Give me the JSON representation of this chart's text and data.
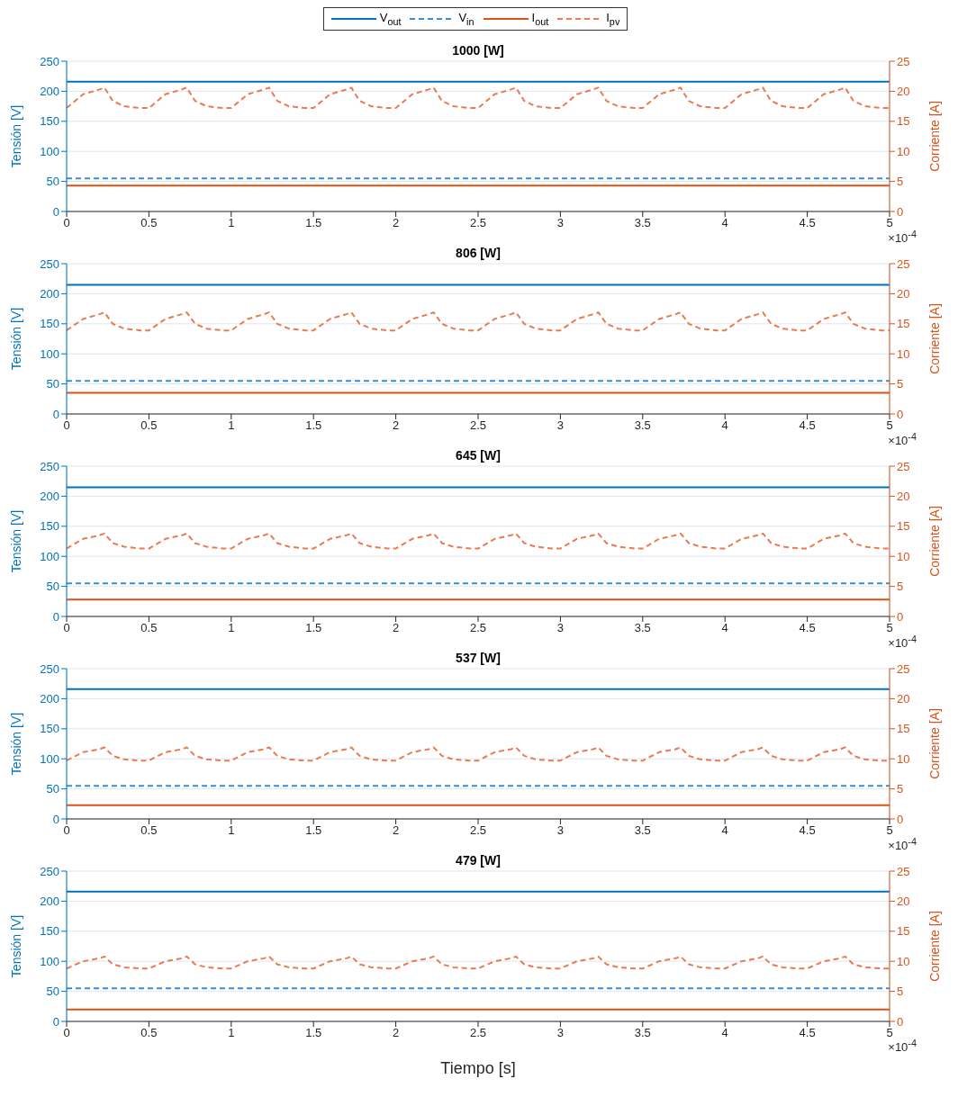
{
  "chart_data": [
    {
      "type": "line",
      "title": "1000 [W]",
      "ylabel": "Tensión [V]",
      "y2label": "Corriente [A]",
      "legend": "top",
      "grid": true,
      "marker": "none",
      "annotations": [
        "×10$^{-4}$"
      ],
      "xlim": [
        0,
        5
      ],
      "xticks": [
        0,
        0.5,
        1,
        1.5,
        2,
        2.5,
        3,
        3.5,
        4,
        4.5,
        5
      ],
      "ylim": [
        0,
        250
      ],
      "yticks": [
        0,
        50,
        100,
        150,
        200,
        250
      ],
      "y2lim": [
        0,
        25
      ],
      "y2ticks": [
        0,
        5,
        10,
        15,
        20,
        25
      ],
      "x": [
        0,
        0.1,
        0.2,
        0.23,
        0.28,
        0.35,
        0.45,
        0.5,
        0.6,
        0.7,
        0.73,
        0.78,
        0.85,
        0.95,
        1,
        1.1,
        1.2,
        1.23,
        1.28,
        1.35,
        1.45,
        1.5,
        1.6,
        1.7,
        1.73,
        1.78,
        1.85,
        1.95,
        2,
        2.1,
        2.2,
        2.23,
        2.28,
        2.35,
        2.45,
        2.5,
        2.6,
        2.7,
        2.73,
        2.78,
        2.85,
        2.95,
        3,
        3.1,
        3.2,
        3.23,
        3.28,
        3.35,
        3.45,
        3.5,
        3.6,
        3.7,
        3.73,
        3.78,
        3.85,
        3.95,
        4,
        4.1,
        4.2,
        4.23,
        4.28,
        4.35,
        4.45,
        4.5,
        4.6,
        4.7,
        4.73,
        4.78,
        4.85,
        4.95,
        5
      ],
      "series": [
        {
          "name": "V$_{out}$",
          "color": "#0072bd",
          "line_style": "solid",
          "values": [
            216,
            216,
            216,
            216,
            216,
            216,
            216,
            216,
            216,
            216,
            216,
            216,
            216,
            216,
            216,
            216,
            216,
            216,
            216,
            216,
            216,
            216,
            216,
            216,
            216,
            216,
            216,
            216,
            216,
            216,
            216,
            216,
            216,
            216,
            216,
            216,
            216,
            216,
            216,
            216,
            216,
            216,
            216,
            216,
            216,
            216,
            216,
            216,
            216,
            216,
            216,
            216,
            216,
            216,
            216,
            216,
            216,
            216,
            216,
            216,
            216,
            216,
            216,
            216,
            216,
            216,
            216,
            216,
            216,
            216,
            216
          ]
        },
        {
          "name": "V$_{in}$",
          "color": "#3a8fd0",
          "line_style": "dashed",
          "values": [
            55,
            55,
            55,
            55,
            55,
            55,
            55,
            55,
            55,
            55,
            55,
            55,
            55,
            55,
            55,
            55,
            55,
            55,
            55,
            55,
            55,
            55,
            55,
            55,
            55,
            55,
            55,
            55,
            55,
            55,
            55,
            55,
            55,
            55,
            55,
            55,
            55,
            55,
            55,
            55,
            55,
            55,
            55,
            55,
            55,
            55,
            55,
            55,
            55,
            55,
            55,
            55,
            55,
            55,
            55,
            55,
            55,
            55,
            55,
            55,
            55,
            55,
            55,
            55,
            55,
            55,
            55,
            55,
            55,
            55,
            55
          ]
        },
        {
          "name": "I$_{out}$",
          "color": "#d95319",
          "line_style": "solid",
          "axis": "y2",
          "values": [
            4.3,
            4.3,
            4.3,
            4.3,
            4.3,
            4.3,
            4.3,
            4.3,
            4.3,
            4.3,
            4.3,
            4.3,
            4.3,
            4.3,
            4.3,
            4.3,
            4.3,
            4.3,
            4.3,
            4.3,
            4.3,
            4.3,
            4.3,
            4.3,
            4.3,
            4.3,
            4.3,
            4.3,
            4.3,
            4.3,
            4.3,
            4.3,
            4.3,
            4.3,
            4.3,
            4.3,
            4.3,
            4.3,
            4.3,
            4.3,
            4.3,
            4.3,
            4.3,
            4.3,
            4.3,
            4.3,
            4.3,
            4.3,
            4.3,
            4.3,
            4.3,
            4.3,
            4.3,
            4.3,
            4.3,
            4.3,
            4.3,
            4.3,
            4.3,
            4.3,
            4.3,
            4.3,
            4.3,
            4.3,
            4.3,
            4.3,
            4.3,
            4.3,
            4.3,
            4.3,
            4.3
          ]
        },
        {
          "name": "I$_{pv}$",
          "color": "#e87b52",
          "line_style": "dashed",
          "axis": "y2",
          "values": [
            17.2,
            19.5,
            20.3,
            20.6,
            18.4,
            17.5,
            17.2,
            17.2,
            19.5,
            20.3,
            20.6,
            18.4,
            17.5,
            17.2,
            17.2,
            19.5,
            20.3,
            20.6,
            18.4,
            17.5,
            17.2,
            17.2,
            19.5,
            20.3,
            20.6,
            18.4,
            17.5,
            17.2,
            17.2,
            19.5,
            20.3,
            20.6,
            18.4,
            17.5,
            17.2,
            17.2,
            19.5,
            20.3,
            20.6,
            18.4,
            17.5,
            17.2,
            17.2,
            19.5,
            20.3,
            20.6,
            18.4,
            17.5,
            17.2,
            17.2,
            19.5,
            20.3,
            20.6,
            18.4,
            17.5,
            17.2,
            17.2,
            19.5,
            20.3,
            20.6,
            18.4,
            17.5,
            17.2,
            17.2,
            19.5,
            20.3,
            20.6,
            18.4,
            17.5,
            17.2,
            17.2
          ]
        }
      ]
    },
    {
      "type": "line",
      "title": "806 [W]",
      "ylabel": "Tensión [V]",
      "y2label": "Corriente [A]",
      "grid": true,
      "marker": "none",
      "annotations": [
        "×10$^{-4}$"
      ],
      "xlim": [
        0,
        5
      ],
      "xticks": [
        0,
        0.5,
        1,
        1.5,
        2,
        2.5,
        3,
        3.5,
        4,
        4.5,
        5
      ],
      "ylim": [
        0,
        250
      ],
      "yticks": [
        0,
        50,
        100,
        150,
        200,
        250
      ],
      "y2lim": [
        0,
        25
      ],
      "y2ticks": [
        0,
        5,
        10,
        15,
        20,
        25
      ],
      "x": [
        0,
        0.1,
        0.2,
        0.23,
        0.28,
        0.35,
        0.45,
        0.5,
        0.6,
        0.7,
        0.73,
        0.78,
        0.85,
        0.95,
        1,
        1.1,
        1.2,
        1.23,
        1.28,
        1.35,
        1.45,
        1.5,
        1.6,
        1.7,
        1.73,
        1.78,
        1.85,
        1.95,
        2,
        2.1,
        2.2,
        2.23,
        2.28,
        2.35,
        2.45,
        2.5,
        2.6,
        2.7,
        2.73,
        2.78,
        2.85,
        2.95,
        3,
        3.1,
        3.2,
        3.23,
        3.28,
        3.35,
        3.45,
        3.5,
        3.6,
        3.7,
        3.73,
        3.78,
        3.85,
        3.95,
        4,
        4.1,
        4.2,
        4.23,
        4.28,
        4.35,
        4.45,
        4.5,
        4.6,
        4.7,
        4.73,
        4.78,
        4.85,
        4.95,
        5
      ],
      "series": [
        {
          "color": "#0072bd",
          "line_style": "solid",
          "values": [
            215,
            215,
            215,
            215,
            215,
            215,
            215,
            215,
            215,
            215,
            215,
            215,
            215,
            215,
            215,
            215,
            215,
            215,
            215,
            215,
            215,
            215,
            215,
            215,
            215,
            215,
            215,
            215,
            215,
            215,
            215,
            215,
            215,
            215,
            215,
            215,
            215,
            215,
            215,
            215,
            215,
            215,
            215,
            215,
            215,
            215,
            215,
            215,
            215,
            215,
            215,
            215,
            215,
            215,
            215,
            215,
            215,
            215,
            215,
            215,
            215,
            215,
            215,
            215,
            215,
            215,
            215,
            215,
            215,
            215,
            215
          ]
        },
        {
          "color": "#3a8fd0",
          "line_style": "dashed",
          "values": [
            55,
            55,
            55,
            55,
            55,
            55,
            55,
            55,
            55,
            55,
            55,
            55,
            55,
            55,
            55,
            55,
            55,
            55,
            55,
            55,
            55,
            55,
            55,
            55,
            55,
            55,
            55,
            55,
            55,
            55,
            55,
            55,
            55,
            55,
            55,
            55,
            55,
            55,
            55,
            55,
            55,
            55,
            55,
            55,
            55,
            55,
            55,
            55,
            55,
            55,
            55,
            55,
            55,
            55,
            55,
            55,
            55,
            55,
            55,
            55,
            55,
            55,
            55,
            55,
            55,
            55,
            55,
            55,
            55,
            55,
            55
          ]
        },
        {
          "color": "#d95319",
          "line_style": "solid",
          "axis": "y2",
          "values": [
            3.5,
            3.5,
            3.5,
            3.5,
            3.5,
            3.5,
            3.5,
            3.5,
            3.5,
            3.5,
            3.5,
            3.5,
            3.5,
            3.5,
            3.5,
            3.5,
            3.5,
            3.5,
            3.5,
            3.5,
            3.5,
            3.5,
            3.5,
            3.5,
            3.5,
            3.5,
            3.5,
            3.5,
            3.5,
            3.5,
            3.5,
            3.5,
            3.5,
            3.5,
            3.5,
            3.5,
            3.5,
            3.5,
            3.5,
            3.5,
            3.5,
            3.5,
            3.5,
            3.5,
            3.5,
            3.5,
            3.5,
            3.5,
            3.5,
            3.5,
            3.5,
            3.5,
            3.5,
            3.5,
            3.5,
            3.5,
            3.5,
            3.5,
            3.5,
            3.5,
            3.5,
            3.5,
            3.5,
            3.5,
            3.5,
            3.5,
            3.5,
            3.5,
            3.5,
            3.5,
            3.5
          ]
        },
        {
          "color": "#e87b52",
          "line_style": "dashed",
          "axis": "y2",
          "values": [
            13.9,
            15.8,
            16.6,
            16.9,
            15.0,
            14.2,
            13.9,
            13.9,
            15.8,
            16.6,
            16.9,
            15.0,
            14.2,
            13.9,
            13.9,
            15.8,
            16.6,
            16.9,
            15.0,
            14.2,
            13.9,
            13.9,
            15.8,
            16.6,
            16.9,
            15.0,
            14.2,
            13.9,
            13.9,
            15.8,
            16.6,
            16.9,
            15.0,
            14.2,
            13.9,
            13.9,
            15.8,
            16.6,
            16.9,
            15.0,
            14.2,
            13.9,
            13.9,
            15.8,
            16.6,
            16.9,
            15.0,
            14.2,
            13.9,
            13.9,
            15.8,
            16.6,
            16.9,
            15.0,
            14.2,
            13.9,
            13.9,
            15.8,
            16.6,
            16.9,
            15.0,
            14.2,
            13.9,
            13.9,
            15.8,
            16.6,
            16.9,
            15.0,
            14.2,
            13.9,
            13.9
          ]
        }
      ]
    },
    {
      "type": "line",
      "title": "645 [W]",
      "ylabel": "Tensión [V]",
      "y2label": "Corriente [A]",
      "grid": true,
      "marker": "none",
      "annotations": [
        "×10$^{-4}$"
      ],
      "xlim": [
        0,
        5
      ],
      "xticks": [
        0,
        0.5,
        1,
        1.5,
        2,
        2.5,
        3,
        3.5,
        4,
        4.5,
        5
      ],
      "ylim": [
        0,
        250
      ],
      "yticks": [
        0,
        50,
        100,
        150,
        200,
        250
      ],
      "y2lim": [
        0,
        25
      ],
      "y2ticks": [
        0,
        5,
        10,
        15,
        20,
        25
      ],
      "x": [
        0,
        0.1,
        0.2,
        0.23,
        0.28,
        0.35,
        0.45,
        0.5,
        0.6,
        0.7,
        0.73,
        0.78,
        0.85,
        0.95,
        1,
        1.1,
        1.2,
        1.23,
        1.28,
        1.35,
        1.45,
        1.5,
        1.6,
        1.7,
        1.73,
        1.78,
        1.85,
        1.95,
        2,
        2.1,
        2.2,
        2.23,
        2.28,
        2.35,
        2.45,
        2.5,
        2.6,
        2.7,
        2.73,
        2.78,
        2.85,
        2.95,
        3,
        3.1,
        3.2,
        3.23,
        3.28,
        3.35,
        3.45,
        3.5,
        3.6,
        3.7,
        3.73,
        3.78,
        3.85,
        3.95,
        4,
        4.1,
        4.2,
        4.23,
        4.28,
        4.35,
        4.45,
        4.5,
        4.6,
        4.7,
        4.73,
        4.78,
        4.85,
        4.95,
        5
      ],
      "series": [
        {
          "color": "#0072bd",
          "line_style": "solid",
          "values": [
            215,
            215,
            215,
            215,
            215,
            215,
            215,
            215,
            215,
            215,
            215,
            215,
            215,
            215,
            215,
            215,
            215,
            215,
            215,
            215,
            215,
            215,
            215,
            215,
            215,
            215,
            215,
            215,
            215,
            215,
            215,
            215,
            215,
            215,
            215,
            215,
            215,
            215,
            215,
            215,
            215,
            215,
            215,
            215,
            215,
            215,
            215,
            215,
            215,
            215,
            215,
            215,
            215,
            215,
            215,
            215,
            215,
            215,
            215,
            215,
            215,
            215,
            215,
            215,
            215,
            215,
            215,
            215,
            215,
            215,
            215
          ]
        },
        {
          "color": "#3a8fd0",
          "line_style": "dashed",
          "values": [
            55,
            55,
            55,
            55,
            55,
            55,
            55,
            55,
            55,
            55,
            55,
            55,
            55,
            55,
            55,
            55,
            55,
            55,
            55,
            55,
            55,
            55,
            55,
            55,
            55,
            55,
            55,
            55,
            55,
            55,
            55,
            55,
            55,
            55,
            55,
            55,
            55,
            55,
            55,
            55,
            55,
            55,
            55,
            55,
            55,
            55,
            55,
            55,
            55,
            55,
            55,
            55,
            55,
            55,
            55,
            55,
            55,
            55,
            55,
            55,
            55,
            55,
            55,
            55,
            55,
            55,
            55,
            55,
            55,
            55,
            55
          ]
        },
        {
          "color": "#d95319",
          "line_style": "solid",
          "axis": "y2",
          "values": [
            2.8,
            2.8,
            2.8,
            2.8,
            2.8,
            2.8,
            2.8,
            2.8,
            2.8,
            2.8,
            2.8,
            2.8,
            2.8,
            2.8,
            2.8,
            2.8,
            2.8,
            2.8,
            2.8,
            2.8,
            2.8,
            2.8,
            2.8,
            2.8,
            2.8,
            2.8,
            2.8,
            2.8,
            2.8,
            2.8,
            2.8,
            2.8,
            2.8,
            2.8,
            2.8,
            2.8,
            2.8,
            2.8,
            2.8,
            2.8,
            2.8,
            2.8,
            2.8,
            2.8,
            2.8,
            2.8,
            2.8,
            2.8,
            2.8,
            2.8,
            2.8,
            2.8,
            2.8,
            2.8,
            2.8,
            2.8,
            2.8,
            2.8,
            2.8,
            2.8,
            2.8,
            2.8,
            2.8,
            2.8,
            2.8,
            2.8,
            2.8,
            2.8,
            2.8,
            2.8,
            2.8
          ]
        },
        {
          "color": "#e87b52",
          "line_style": "dashed",
          "axis": "y2",
          "values": [
            11.3,
            12.9,
            13.5,
            13.8,
            12.2,
            11.6,
            11.3,
            11.3,
            12.9,
            13.5,
            13.8,
            12.2,
            11.6,
            11.3,
            11.3,
            12.9,
            13.5,
            13.8,
            12.2,
            11.6,
            11.3,
            11.3,
            12.9,
            13.5,
            13.8,
            12.2,
            11.6,
            11.3,
            11.3,
            12.9,
            13.5,
            13.8,
            12.2,
            11.6,
            11.3,
            11.3,
            12.9,
            13.5,
            13.8,
            12.2,
            11.6,
            11.3,
            11.3,
            12.9,
            13.5,
            13.8,
            12.2,
            11.6,
            11.3,
            11.3,
            12.9,
            13.5,
            13.8,
            12.2,
            11.6,
            11.3,
            11.3,
            12.9,
            13.5,
            13.8,
            12.2,
            11.6,
            11.3,
            11.3,
            12.9,
            13.5,
            13.8,
            12.2,
            11.6,
            11.3,
            11.3
          ]
        }
      ]
    },
    {
      "type": "line",
      "title": "537 [W]",
      "ylabel": "Tensión [V]",
      "y2label": "Corriente [A]",
      "grid": true,
      "marker": "none",
      "annotations": [
        "×10$^{-4}$"
      ],
      "xlim": [
        0,
        5
      ],
      "xticks": [
        0,
        0.5,
        1,
        1.5,
        2,
        2.5,
        3,
        3.5,
        4,
        4.5,
        5
      ],
      "ylim": [
        0,
        250
      ],
      "yticks": [
        0,
        50,
        100,
        150,
        200,
        250
      ],
      "y2lim": [
        0,
        25
      ],
      "y2ticks": [
        0,
        5,
        10,
        15,
        20,
        25
      ],
      "x": [
        0,
        0.1,
        0.2,
        0.23,
        0.28,
        0.35,
        0.45,
        0.5,
        0.6,
        0.7,
        0.73,
        0.78,
        0.85,
        0.95,
        1,
        1.1,
        1.2,
        1.23,
        1.28,
        1.35,
        1.45,
        1.5,
        1.6,
        1.7,
        1.73,
        1.78,
        1.85,
        1.95,
        2,
        2.1,
        2.2,
        2.23,
        2.28,
        2.35,
        2.45,
        2.5,
        2.6,
        2.7,
        2.73,
        2.78,
        2.85,
        2.95,
        3,
        3.1,
        3.2,
        3.23,
        3.28,
        3.35,
        3.45,
        3.5,
        3.6,
        3.7,
        3.73,
        3.78,
        3.85,
        3.95,
        4,
        4.1,
        4.2,
        4.23,
        4.28,
        4.35,
        4.45,
        4.5,
        4.6,
        4.7,
        4.73,
        4.78,
        4.85,
        4.95,
        5
      ],
      "series": [
        {
          "color": "#0072bd",
          "line_style": "solid",
          "values": [
            216,
            216,
            216,
            216,
            216,
            216,
            216,
            216,
            216,
            216,
            216,
            216,
            216,
            216,
            216,
            216,
            216,
            216,
            216,
            216,
            216,
            216,
            216,
            216,
            216,
            216,
            216,
            216,
            216,
            216,
            216,
            216,
            216,
            216,
            216,
            216,
            216,
            216,
            216,
            216,
            216,
            216,
            216,
            216,
            216,
            216,
            216,
            216,
            216,
            216,
            216,
            216,
            216,
            216,
            216,
            216,
            216,
            216,
            216,
            216,
            216,
            216,
            216,
            216,
            216,
            216,
            216,
            216,
            216,
            216,
            216
          ]
        },
        {
          "color": "#3a8fd0",
          "line_style": "dashed",
          "values": [
            55,
            55,
            55,
            55,
            55,
            55,
            55,
            55,
            55,
            55,
            55,
            55,
            55,
            55,
            55,
            55,
            55,
            55,
            55,
            55,
            55,
            55,
            55,
            55,
            55,
            55,
            55,
            55,
            55,
            55,
            55,
            55,
            55,
            55,
            55,
            55,
            55,
            55,
            55,
            55,
            55,
            55,
            55,
            55,
            55,
            55,
            55,
            55,
            55,
            55,
            55,
            55,
            55,
            55,
            55,
            55,
            55,
            55,
            55,
            55,
            55,
            55,
            55,
            55,
            55,
            55,
            55,
            55,
            55,
            55,
            55
          ]
        },
        {
          "color": "#d95319",
          "line_style": "solid",
          "axis": "y2",
          "values": [
            2.3,
            2.3,
            2.3,
            2.3,
            2.3,
            2.3,
            2.3,
            2.3,
            2.3,
            2.3,
            2.3,
            2.3,
            2.3,
            2.3,
            2.3,
            2.3,
            2.3,
            2.3,
            2.3,
            2.3,
            2.3,
            2.3,
            2.3,
            2.3,
            2.3,
            2.3,
            2.3,
            2.3,
            2.3,
            2.3,
            2.3,
            2.3,
            2.3,
            2.3,
            2.3,
            2.3,
            2.3,
            2.3,
            2.3,
            2.3,
            2.3,
            2.3,
            2.3,
            2.3,
            2.3,
            2.3,
            2.3,
            2.3,
            2.3,
            2.3,
            2.3,
            2.3,
            2.3,
            2.3,
            2.3,
            2.3,
            2.3,
            2.3,
            2.3,
            2.3,
            2.3,
            2.3,
            2.3,
            2.3,
            2.3,
            2.3,
            2.3,
            2.3,
            2.3,
            2.3,
            2.3
          ]
        },
        {
          "color": "#e87b52",
          "line_style": "dashed",
          "axis": "y2",
          "values": [
            9.7,
            11.1,
            11.6,
            11.9,
            10.5,
            9.9,
            9.7,
            9.7,
            11.1,
            11.6,
            11.9,
            10.5,
            9.9,
            9.7,
            9.7,
            11.1,
            11.6,
            11.9,
            10.5,
            9.9,
            9.7,
            9.7,
            11.1,
            11.6,
            11.9,
            10.5,
            9.9,
            9.7,
            9.7,
            11.1,
            11.6,
            11.9,
            10.5,
            9.9,
            9.7,
            9.7,
            11.1,
            11.6,
            11.9,
            10.5,
            9.9,
            9.7,
            9.7,
            11.1,
            11.6,
            11.9,
            10.5,
            9.9,
            9.7,
            9.7,
            11.1,
            11.6,
            11.9,
            10.5,
            9.9,
            9.7,
            9.7,
            11.1,
            11.6,
            11.9,
            10.5,
            9.9,
            9.7,
            9.7,
            11.1,
            11.6,
            11.9,
            10.5,
            9.9,
            9.7,
            9.7
          ]
        }
      ]
    },
    {
      "type": "line",
      "title": "479 [W]",
      "ylabel": "Tensión [V]",
      "y2label": "Corriente [A]",
      "xlabel": "Tiempo [s]",
      "grid": true,
      "marker": "none",
      "annotations": [
        "×10$^{-4}$"
      ],
      "xlim": [
        0,
        5
      ],
      "xticks": [
        0,
        0.5,
        1,
        1.5,
        2,
        2.5,
        3,
        3.5,
        4,
        4.5,
        5
      ],
      "ylim": [
        0,
        250
      ],
      "yticks": [
        0,
        50,
        100,
        150,
        200,
        250
      ],
      "y2lim": [
        0,
        25
      ],
      "y2ticks": [
        0,
        5,
        10,
        15,
        20,
        25
      ],
      "x": [
        0,
        0.1,
        0.2,
        0.23,
        0.28,
        0.35,
        0.45,
        0.5,
        0.6,
        0.7,
        0.73,
        0.78,
        0.85,
        0.95,
        1,
        1.1,
        1.2,
        1.23,
        1.28,
        1.35,
        1.45,
        1.5,
        1.6,
        1.7,
        1.73,
        1.78,
        1.85,
        1.95,
        2,
        2.1,
        2.2,
        2.23,
        2.28,
        2.35,
        2.45,
        2.5,
        2.6,
        2.7,
        2.73,
        2.78,
        2.85,
        2.95,
        3,
        3.1,
        3.2,
        3.23,
        3.28,
        3.35,
        3.45,
        3.5,
        3.6,
        3.7,
        3.73,
        3.78,
        3.85,
        3.95,
        4,
        4.1,
        4.2,
        4.23,
        4.28,
        4.35,
        4.45,
        4.5,
        4.6,
        4.7,
        4.73,
        4.78,
        4.85,
        4.95,
        5
      ],
      "series": [
        {
          "color": "#0072bd",
          "line_style": "solid",
          "values": [
            216,
            216,
            216,
            216,
            216,
            216,
            216,
            216,
            216,
            216,
            216,
            216,
            216,
            216,
            216,
            216,
            216,
            216,
            216,
            216,
            216,
            216,
            216,
            216,
            216,
            216,
            216,
            216,
            216,
            216,
            216,
            216,
            216,
            216,
            216,
            216,
            216,
            216,
            216,
            216,
            216,
            216,
            216,
            216,
            216,
            216,
            216,
            216,
            216,
            216,
            216,
            216,
            216,
            216,
            216,
            216,
            216,
            216,
            216,
            216,
            216,
            216,
            216,
            216,
            216,
            216,
            216,
            216,
            216,
            216,
            216
          ]
        },
        {
          "color": "#3a8fd0",
          "line_style": "dashed",
          "values": [
            55,
            55,
            55,
            55,
            55,
            55,
            55,
            55,
            55,
            55,
            55,
            55,
            55,
            55,
            55,
            55,
            55,
            55,
            55,
            55,
            55,
            55,
            55,
            55,
            55,
            55,
            55,
            55,
            55,
            55,
            55,
            55,
            55,
            55,
            55,
            55,
            55,
            55,
            55,
            55,
            55,
            55,
            55,
            55,
            55,
            55,
            55,
            55,
            55,
            55,
            55,
            55,
            55,
            55,
            55,
            55,
            55,
            55,
            55,
            55,
            55,
            55,
            55,
            55,
            55,
            55,
            55,
            55,
            55,
            55,
            55
          ]
        },
        {
          "color": "#d95319",
          "line_style": "solid",
          "axis": "y2",
          "values": [
            2.0,
            2.0,
            2.0,
            2.0,
            2.0,
            2.0,
            2.0,
            2.0,
            2.0,
            2.0,
            2.0,
            2.0,
            2.0,
            2.0,
            2.0,
            2.0,
            2.0,
            2.0,
            2.0,
            2.0,
            2.0,
            2.0,
            2.0,
            2.0,
            2.0,
            2.0,
            2.0,
            2.0,
            2.0,
            2.0,
            2.0,
            2.0,
            2.0,
            2.0,
            2.0,
            2.0,
            2.0,
            2.0,
            2.0,
            2.0,
            2.0,
            2.0,
            2.0,
            2.0,
            2.0,
            2.0,
            2.0,
            2.0,
            2.0,
            2.0,
            2.0,
            2.0,
            2.0,
            2.0,
            2.0,
            2.0,
            2.0,
            2.0,
            2.0,
            2.0,
            2.0,
            2.0,
            2.0,
            2.0,
            2.0,
            2.0,
            2.0,
            2.0,
            2.0,
            2.0,
            2.0
          ]
        },
        {
          "color": "#e87b52",
          "line_style": "dashed",
          "axis": "y2",
          "values": [
            8.8,
            10.0,
            10.5,
            10.8,
            9.5,
            9.0,
            8.8,
            8.8,
            10.0,
            10.5,
            10.8,
            9.5,
            9.0,
            8.8,
            8.8,
            10.0,
            10.5,
            10.8,
            9.5,
            9.0,
            8.8,
            8.8,
            10.0,
            10.5,
            10.8,
            9.5,
            9.0,
            8.8,
            8.8,
            10.0,
            10.5,
            10.8,
            9.5,
            9.0,
            8.8,
            8.8,
            10.0,
            10.5,
            10.8,
            9.5,
            9.0,
            8.8,
            8.8,
            10.0,
            10.5,
            10.8,
            9.5,
            9.0,
            8.8,
            8.8,
            10.0,
            10.5,
            10.8,
            9.5,
            9.0,
            8.8,
            8.8,
            10.0,
            10.5,
            10.8,
            9.5,
            9.0,
            8.8,
            8.8,
            10.0,
            10.5,
            10.8,
            9.5,
            9.0,
            8.8,
            8.8
          ]
        }
      ]
    }
  ]
}
